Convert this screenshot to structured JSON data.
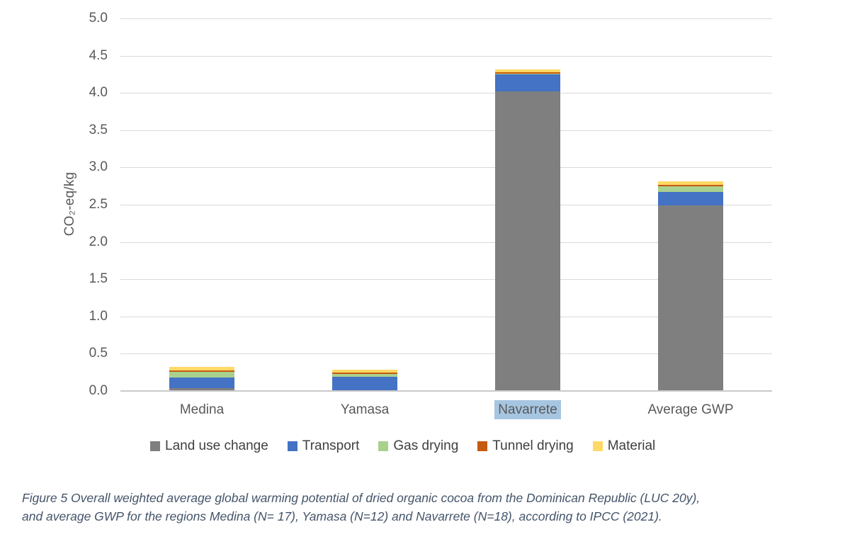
{
  "chart_data": {
    "type": "bar",
    "subtype": "stacked",
    "title": "",
    "ylabel": "CO₂-eq/kg",
    "xlabel": "",
    "ylim": [
      0,
      5.0
    ],
    "ytick_step": 0.5,
    "yticks": [
      "5.0",
      "4.5",
      "4.0",
      "3.5",
      "3.0",
      "2.5",
      "2.0",
      "1.5",
      "1.0",
      "0.5",
      "0.0"
    ],
    "grid": true,
    "legend_position": "bottom",
    "categories": [
      "Medina",
      "Yamasa",
      "Navarrete",
      "Average GWP"
    ],
    "highlighted_category": "Navarrete",
    "series": [
      {
        "name": "Land use change",
        "color": "#7F7F7F",
        "values": [
          0.04,
          0.01,
          4.02,
          2.49
        ]
      },
      {
        "name": "Transport",
        "color": "#4472C4",
        "values": [
          0.14,
          0.18,
          0.23,
          0.18
        ]
      },
      {
        "name": "Gas drying",
        "color": "#A9D18E",
        "values": [
          0.08,
          0.04,
          0.005,
          0.08
        ]
      },
      {
        "name": "Tunnel drying",
        "color": "#C55A11",
        "values": [
          0.02,
          0.02,
          0.02,
          0.015
        ]
      },
      {
        "name": "Material",
        "color": "#FFD966",
        "values": [
          0.04,
          0.04,
          0.04,
          0.05
        ]
      }
    ]
  },
  "caption": {
    "line1": "Figure 5 Overall weighted average global warming potential of dried organic cocoa from the Dominican Republic (LUC 20y),",
    "line2": "and average GWP for the regions Medina (N= 17), Yamasa (N=12) and Navarrete (N=18), according to IPCC (2021)."
  },
  "colors": {
    "background": "#FFFFFF",
    "gridline": "#D9D9D9",
    "axis_line": "#C9C9C9",
    "tick_text": "#595959",
    "category_text": "#595959",
    "legend_text": "#404040",
    "caption_text": "#44546A",
    "highlight_bg": "#A6C5E1"
  }
}
